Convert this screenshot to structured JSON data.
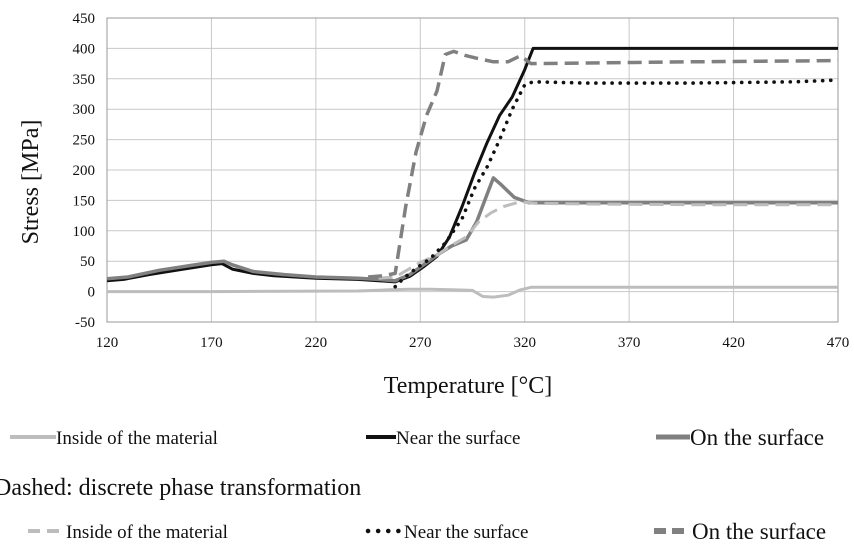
{
  "chart_data": {
    "type": "line",
    "title": "",
    "xlabel": "Temperature [°C]",
    "ylabel": "Stress [MPa]",
    "xlim": [
      120,
      470
    ],
    "ylim": [
      -50,
      450
    ],
    "x_ticks": [
      "120",
      "170",
      "220",
      "270",
      "320",
      "370",
      "420",
      "470"
    ],
    "y_ticks": [
      "-50",
      "0",
      "50",
      "100",
      "150",
      "200",
      "250",
      "300",
      "350",
      "400",
      "450"
    ],
    "grid": true,
    "legend_heading": "Dashed: discrete phase transformation",
    "series": [
      {
        "name": "Inside of the material",
        "style": "solid",
        "color": "#bdbdbd",
        "points": [
          [
            120,
            0
          ],
          [
            170,
            0
          ],
          [
            240,
            1
          ],
          [
            255,
            3
          ],
          [
            265,
            4
          ],
          [
            275,
            4
          ],
          [
            285,
            3
          ],
          [
            295,
            2
          ],
          [
            300,
            -8
          ],
          [
            305,
            -9
          ],
          [
            312,
            -6
          ],
          [
            318,
            3
          ],
          [
            323,
            7
          ],
          [
            350,
            7
          ],
          [
            400,
            7
          ],
          [
            470,
            7
          ]
        ]
      },
      {
        "name": "Near the surface",
        "style": "solid",
        "color": "#111111",
        "points": [
          [
            120,
            18
          ],
          [
            128,
            20
          ],
          [
            140,
            28
          ],
          [
            155,
            36
          ],
          [
            170,
            44
          ],
          [
            175,
            46
          ],
          [
            180,
            37
          ],
          [
            190,
            30
          ],
          [
            200,
            26
          ],
          [
            220,
            22
          ],
          [
            240,
            20
          ],
          [
            250,
            18
          ],
          [
            258,
            16
          ],
          [
            265,
            25
          ],
          [
            272,
            42
          ],
          [
            278,
            58
          ],
          [
            284,
            90
          ],
          [
            290,
            140
          ],
          [
            296,
            195
          ],
          [
            302,
            245
          ],
          [
            308,
            290
          ],
          [
            314,
            320
          ],
          [
            320,
            365
          ],
          [
            324,
            400
          ],
          [
            350,
            400
          ],
          [
            400,
            400
          ],
          [
            470,
            400
          ]
        ]
      },
      {
        "name": "On the surface",
        "style": "solid",
        "color": "#808080",
        "points": [
          [
            120,
            21
          ],
          [
            130,
            24
          ],
          [
            145,
            35
          ],
          [
            160,
            43
          ],
          [
            170,
            48
          ],
          [
            176,
            50
          ],
          [
            180,
            44
          ],
          [
            190,
            33
          ],
          [
            205,
            28
          ],
          [
            220,
            24
          ],
          [
            240,
            22
          ],
          [
            250,
            20
          ],
          [
            258,
            18
          ],
          [
            265,
            28
          ],
          [
            272,
            45
          ],
          [
            278,
            60
          ],
          [
            285,
            75
          ],
          [
            292,
            85
          ],
          [
            297,
            115
          ],
          [
            302,
            160
          ],
          [
            305,
            187
          ],
          [
            309,
            175
          ],
          [
            315,
            155
          ],
          [
            322,
            146
          ],
          [
            340,
            146
          ],
          [
            400,
            146
          ],
          [
            470,
            146
          ]
        ]
      },
      {
        "name": "Inside of the material",
        "style": "dashed",
        "color": "#bdbdbd",
        "points": [
          [
            250,
            22
          ],
          [
            258,
            24
          ],
          [
            264,
            36
          ],
          [
            270,
            48
          ],
          [
            278,
            60
          ],
          [
            285,
            76
          ],
          [
            292,
            90
          ],
          [
            298,
            115
          ],
          [
            304,
            130
          ],
          [
            310,
            140
          ],
          [
            318,
            148
          ],
          [
            325,
            145
          ],
          [
            350,
            144
          ],
          [
            400,
            143
          ],
          [
            470,
            143
          ]
        ]
      },
      {
        "name": "Near the surface",
        "style": "dotted",
        "color": "#111111",
        "points": [
          [
            258,
            8
          ],
          [
            262,
            22
          ],
          [
            268,
            38
          ],
          [
            275,
            55
          ],
          [
            282,
            80
          ],
          [
            290,
            120
          ],
          [
            296,
            170
          ],
          [
            302,
            205
          ],
          [
            308,
            250
          ],
          [
            314,
            300
          ],
          [
            320,
            340
          ],
          [
            324,
            345
          ],
          [
            350,
            343
          ],
          [
            400,
            343
          ],
          [
            450,
            345
          ],
          [
            470,
            348
          ]
        ]
      },
      {
        "name": "On the surface",
        "style": "dashed",
        "color": "#808080",
        "points": [
          [
            245,
            24
          ],
          [
            252,
            26
          ],
          [
            258,
            30
          ],
          [
            263,
            140
          ],
          [
            268,
            230
          ],
          [
            273,
            290
          ],
          [
            278,
            330
          ],
          [
            282,
            390
          ],
          [
            286,
            395
          ],
          [
            292,
            388
          ],
          [
            298,
            383
          ],
          [
            305,
            378
          ],
          [
            312,
            378
          ],
          [
            318,
            388
          ],
          [
            323,
            375
          ],
          [
            350,
            376
          ],
          [
            400,
            378
          ],
          [
            470,
            380
          ]
        ]
      }
    ]
  }
}
